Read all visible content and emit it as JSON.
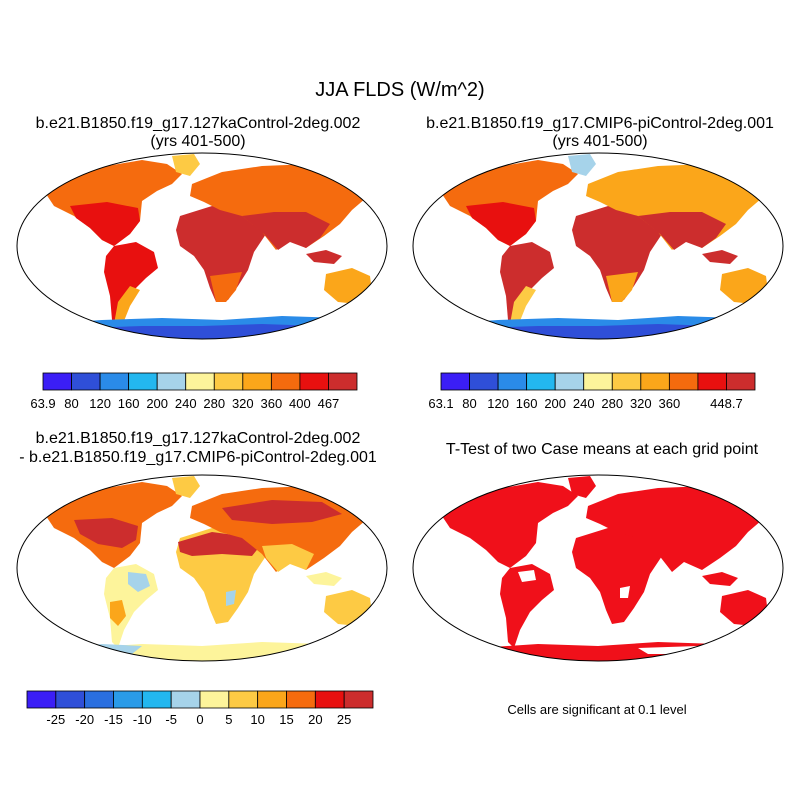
{
  "title": "JJA FLDS (W/m^2)",
  "chart_data": [
    {
      "type": "heatmap",
      "title_lines": [
        "b.e21.B1850.f19_g17.127kaControl-2deg.002",
        "(yrs 401-500)"
      ],
      "colorbar": {
        "tick_labels": [
          "63.9",
          "80",
          "120",
          "160",
          "200",
          "240",
          "280",
          "320",
          "360",
          "400",
          "467"
        ],
        "colors": [
          "#3b1ef6",
          "#2f4fd8",
          "#2a8be8",
          "#23b7ef",
          "#a6d3ea",
          "#fdf49b",
          "#fdca44",
          "#fba61a",
          "#f56b0e",
          "#e8100f",
          "#cc2d2d"
        ]
      }
    },
    {
      "type": "heatmap",
      "title_lines": [
        "b.e21.B1850.f19_g17.CMIP6-piControl-2deg.001",
        "(yrs 401-500)"
      ],
      "colorbar": {
        "tick_labels": [
          "63.1",
          "80",
          "120",
          "160",
          "200",
          "240",
          "280",
          "320",
          "360",
          "",
          "448.7"
        ],
        "colors": [
          "#3b1ef6",
          "#2f4fd8",
          "#2a8be8",
          "#23b7ef",
          "#a6d3ea",
          "#fdf49b",
          "#fdca44",
          "#fba61a",
          "#f56b0e",
          "#e8100f",
          "#cc2d2d"
        ]
      }
    },
    {
      "type": "heatmap",
      "title_lines": [
        "b.e21.B1850.f19_g17.127kaControl-2deg.002",
        "- b.e21.B1850.f19_g17.CMIP6-piControl-2deg.001"
      ],
      "colorbar": {
        "tick_labels": [
          "-25",
          "-20",
          "-15",
          "-10",
          "-5",
          "0",
          "5",
          "10",
          "15",
          "20",
          "25"
        ],
        "colors": [
          "#3b1ef6",
          "#2f4fd8",
          "#2a6fe0",
          "#2a9be8",
          "#23b7ef",
          "#a6d3ea",
          "#fdf49b",
          "#fdca44",
          "#fba61a",
          "#f56b0e",
          "#e8100f",
          "#cc2d2d"
        ]
      }
    },
    {
      "type": "heatmap",
      "title_lines": [
        "T-Test of two Case means at each grid point"
      ],
      "footnote": "Cells are significant at 0.1 level"
    }
  ]
}
